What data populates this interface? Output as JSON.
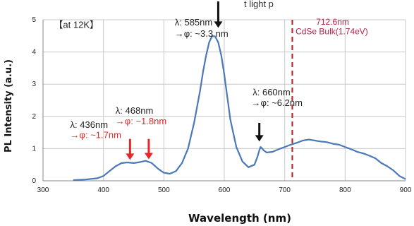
{
  "top_text": "t light p",
  "chart_data": {
    "type": "line",
    "xlabel": "Wavelength (nm)",
    "ylabel": "PL Intensity (a.u.)",
    "xlim": [
      300,
      900
    ],
    "ylim": [
      0,
      5
    ],
    "x_ticks": [
      "300",
      "400",
      "500",
      "600",
      "700",
      "800",
      "900"
    ],
    "y_ticks": [
      "0",
      "1",
      "2",
      "3",
      "4",
      "5"
    ],
    "grid": "vertical-and-horizontal",
    "series": [
      {
        "color": "#4a78b8",
        "x": [
          350,
          370,
          390,
          400,
          410,
          420,
          430,
          440,
          450,
          460,
          465,
          470,
          480,
          490,
          500,
          510,
          520,
          530,
          540,
          550,
          560,
          565,
          570,
          575,
          580,
          585,
          590,
          595,
          600,
          605,
          610,
          620,
          630,
          640,
          650,
          655,
          658,
          660,
          662,
          665,
          670,
          680,
          690,
          700,
          710,
          720,
          730,
          740,
          750,
          760,
          770,
          780,
          790,
          800,
          810,
          820,
          830,
          840,
          850,
          860,
          870,
          880,
          890,
          900
        ],
        "y": [
          0.02,
          0.04,
          0.08,
          0.15,
          0.3,
          0.45,
          0.55,
          0.57,
          0.55,
          0.58,
          0.6,
          0.62,
          0.55,
          0.38,
          0.25,
          0.22,
          0.3,
          0.55,
          1.0,
          1.8,
          2.8,
          3.4,
          3.9,
          4.3,
          4.5,
          4.48,
          4.3,
          3.9,
          3.3,
          2.6,
          1.9,
          1.05,
          0.6,
          0.42,
          0.5,
          0.75,
          0.95,
          1.05,
          1.02,
          0.95,
          0.88,
          0.9,
          0.98,
          1.05,
          1.12,
          1.18,
          1.25,
          1.28,
          1.25,
          1.22,
          1.2,
          1.15,
          1.12,
          1.05,
          0.98,
          0.9,
          0.85,
          0.78,
          0.7,
          0.55,
          0.45,
          0.32,
          0.15,
          0.05
        ]
      }
    ],
    "reference_line": {
      "x": 712.6,
      "color": "#c0282c",
      "style": "dashed"
    },
    "annotations": [
      {
        "id": "cond",
        "text": "【at 12K】",
        "x": 318,
        "y": 4.75
      },
      {
        "id": "p585_l1",
        "text": "λ: 585nm",
        "x": 518,
        "y": 4.82
      },
      {
        "id": "p585_l2",
        "text": "→φ: ~3.3 nm",
        "x": 518,
        "y": 4.47
      },
      {
        "id": "bulk_l1",
        "text": "712.6nm",
        "x": 752,
        "y": 4.85
      },
      {
        "id": "bulk_l2",
        "text": "CdSe Bulk(1.74eV)",
        "x": 718,
        "y": 4.55
      },
      {
        "id": "p660_l1",
        "text": "λ: 660nm",
        "x": 647,
        "y": 2.65
      },
      {
        "id": "p660_l2",
        "text": "→φ: ~6.2nm",
        "x": 645,
        "y": 2.32
      },
      {
        "id": "p468_l1",
        "text": "λ: 468nm",
        "x": 420,
        "y": 2.08
      },
      {
        "id": "p468_l2",
        "text": "→φ: ~1.8nm",
        "x": 420,
        "y": 1.75
      },
      {
        "id": "p436_l1",
        "text": "λ: 436nm",
        "x": 345,
        "y": 1.65
      },
      {
        "id": "p436_l2",
        "text": "→φ: ~1.7nm",
        "x": 345,
        "y": 1.33
      }
    ],
    "arrows": [
      {
        "x": 590,
        "y_top": 5.65,
        "y_bottom": 4.75,
        "color": "#111111"
      },
      {
        "x": 658,
        "y_top": 1.8,
        "y_bottom": 1.22,
        "color": "#111111"
      },
      {
        "x": 444,
        "y_top": 1.3,
        "y_bottom": 0.65,
        "color": "#e8262a"
      },
      {
        "x": 475,
        "y_top": 1.3,
        "y_bottom": 0.67,
        "color": "#e8262a"
      }
    ]
  }
}
